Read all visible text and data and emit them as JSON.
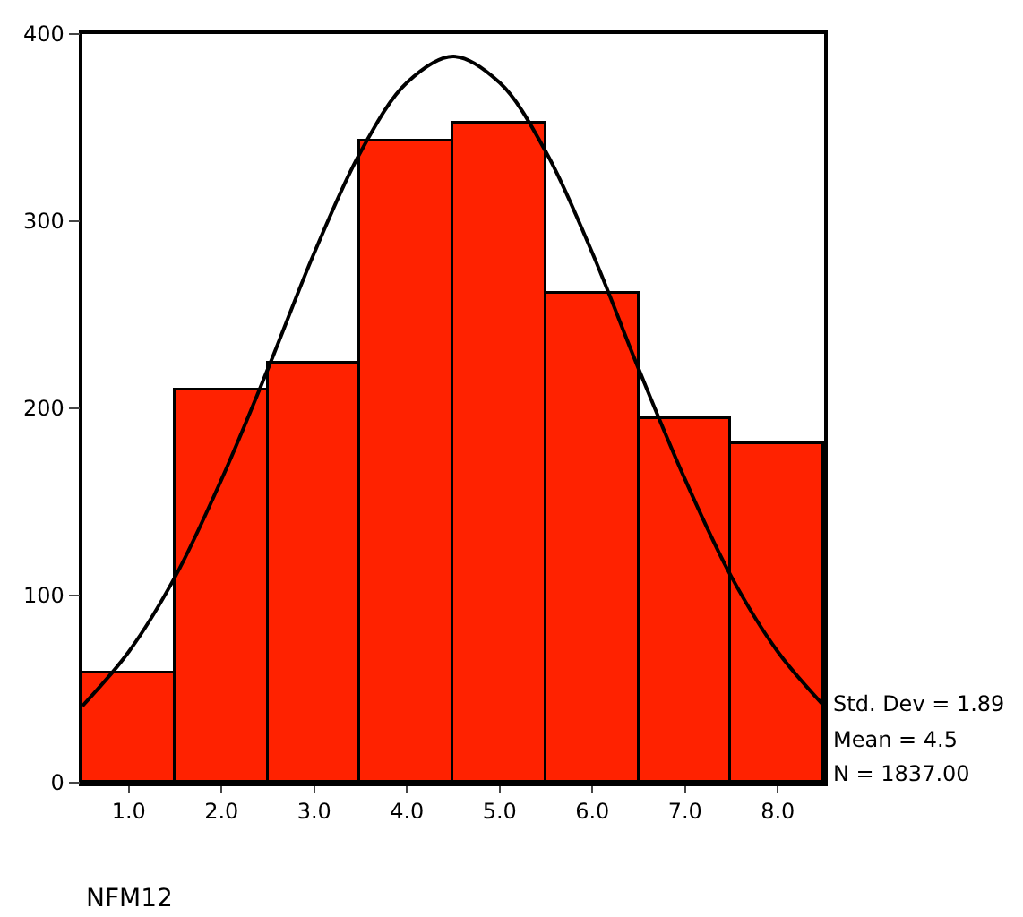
{
  "chart_data": {
    "type": "histogram",
    "xlabel": "NFM12",
    "bins": [
      0.5,
      1.5,
      2.5,
      3.5,
      4.5,
      5.5,
      6.5,
      7.5,
      8.5
    ],
    "series": [
      {
        "color": "#ff2200",
        "values": [
          58,
          210,
          224,
          343,
          352,
          261,
          194,
          181
        ]
      },
      {
        "type": "line",
        "color": "#000000",
        "x": [
          0.5,
          1.0,
          1.5,
          2.0,
          2.5,
          3.0,
          3.5,
          4.0,
          4.5,
          5.0,
          5.5,
          6.0,
          6.5,
          7.0,
          7.5,
          8.0,
          8.5
        ],
        "values": [
          41,
          70,
          110,
          162,
          221,
          283,
          337,
          374,
          388,
          374,
          337,
          283,
          221,
          162,
          110,
          70,
          41
        ]
      }
    ],
    "xlim": [
      0.5,
      8.5
    ],
    "xticks": [
      {
        "value": 1,
        "label": "1.0"
      },
      {
        "value": 2,
        "label": "2.0"
      },
      {
        "value": 3,
        "label": "3.0"
      },
      {
        "value": 4,
        "label": "4.0"
      },
      {
        "value": 5,
        "label": "5.0"
      },
      {
        "value": 6,
        "label": "6.0"
      },
      {
        "value": 7,
        "label": "7.0"
      },
      {
        "value": 8,
        "label": "8.0"
      }
    ],
    "ylim": [
      0,
      400
    ],
    "yticks": [
      0,
      100,
      200,
      300,
      400
    ],
    "annotations": [
      "Std. Dev = 1.89",
      "Mean = 4.5",
      "N = 1837.00"
    ]
  }
}
